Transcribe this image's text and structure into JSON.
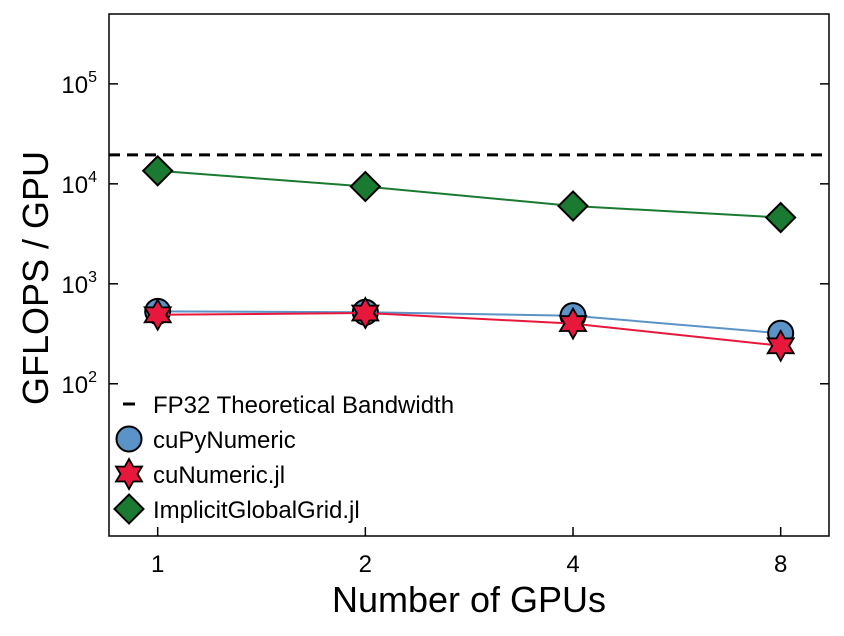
{
  "chart_data": {
    "type": "line",
    "xlabel": "Number of GPUs",
    "ylabel": "GFLOPS / GPU",
    "x_scale": "log2",
    "y_scale": "log",
    "xlim": [
      0.85,
      9.4
    ],
    "ylim": [
      3,
      500000
    ],
    "x_ticks": [
      {
        "value": 1,
        "label": "1"
      },
      {
        "value": 2,
        "label": "2"
      },
      {
        "value": 4,
        "label": "4"
      },
      {
        "value": 8,
        "label": "8"
      }
    ],
    "y_ticks": [
      {
        "value": 100,
        "base": "10",
        "exp": "2"
      },
      {
        "value": 1000,
        "base": "10",
        "exp": "3"
      },
      {
        "value": 10000,
        "base": "10",
        "exp": "4"
      },
      {
        "value": 100000,
        "base": "10",
        "exp": "5"
      }
    ],
    "x": [
      1,
      2,
      4,
      8
    ],
    "reference_line": {
      "name": "FP32 Theoretical Bandwidth",
      "value": 19500,
      "color": "#000000",
      "style": "dashed"
    },
    "series": [
      {
        "name": "cuPyNumeric",
        "values": [
          530,
          520,
          480,
          320
        ],
        "color": "#5b93c7",
        "marker": "circle"
      },
      {
        "name": "cuNumeric.jl",
        "values": [
          490,
          510,
          400,
          240
        ],
        "color": "#e8183c",
        "marker": "star"
      },
      {
        "name": "ImplicitGlobalGrid.jl",
        "values": [
          13500,
          9400,
          6000,
          4600
        ],
        "color": "#1a7a32",
        "marker": "diamond"
      }
    ],
    "legend_position": "lower-left",
    "grid": false
  }
}
